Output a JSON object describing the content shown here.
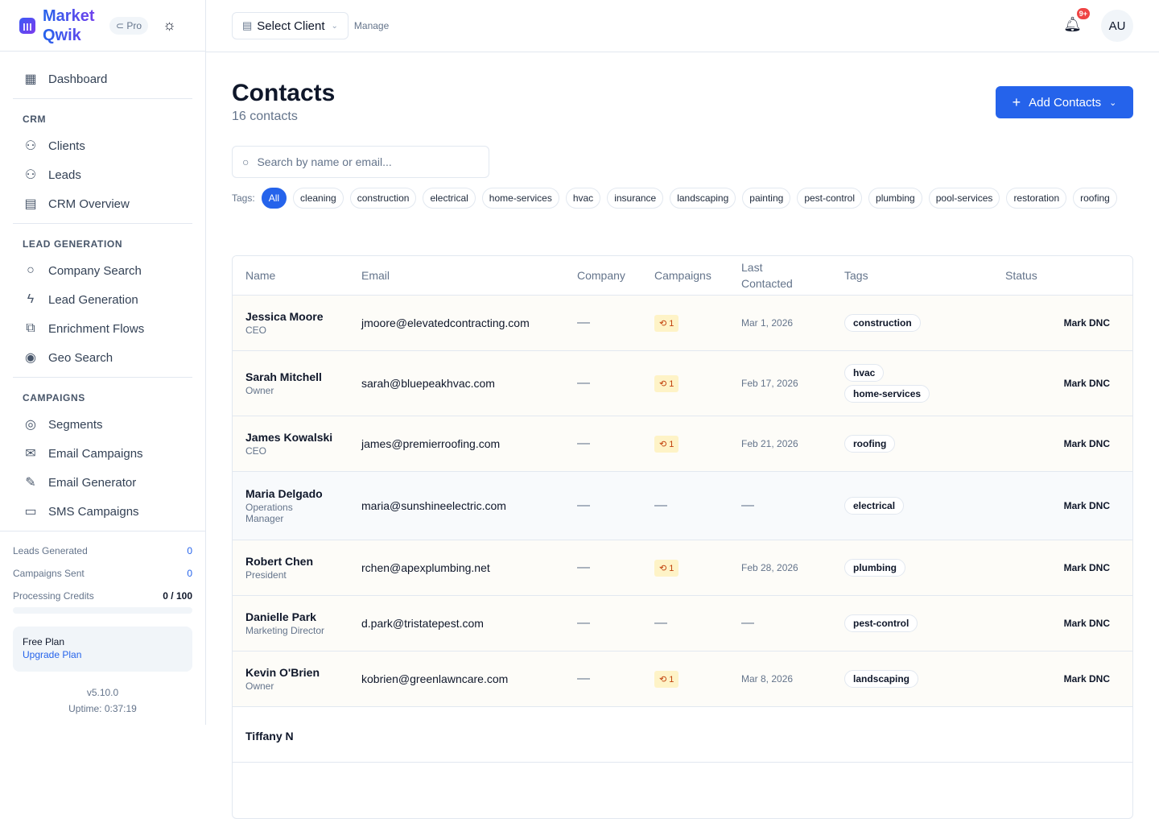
{
  "brand": {
    "name": "Market Qwik",
    "plan_badge": "Pro"
  },
  "sidebar": {
    "dashboard": "Dashboard",
    "sections": [
      {
        "title": "CRM",
        "items": [
          {
            "label": "Clients",
            "icon": "users-icon"
          },
          {
            "label": "Leads",
            "icon": "user-group-icon"
          },
          {
            "label": "CRM Overview",
            "icon": "building-icon"
          }
        ]
      },
      {
        "title": "LEAD GENERATION",
        "items": [
          {
            "label": "Company Search",
            "icon": "search-icon"
          },
          {
            "label": "Lead Generation",
            "icon": "bolt-icon"
          },
          {
            "label": "Enrichment Flows",
            "icon": "flow-icon"
          },
          {
            "label": "Geo Search",
            "icon": "map-pin-icon"
          }
        ]
      },
      {
        "title": "CAMPAIGNS",
        "items": [
          {
            "label": "Segments",
            "icon": "target-icon"
          },
          {
            "label": "Email Campaigns",
            "icon": "mail-icon"
          },
          {
            "label": "Email Generator",
            "icon": "pen-icon"
          },
          {
            "label": "SMS Campaigns",
            "icon": "message-icon"
          }
        ]
      }
    ],
    "stats": [
      {
        "label": "Leads Generated",
        "value": "0"
      },
      {
        "label": "Campaigns Sent",
        "value": "0"
      },
      {
        "label": "Processing Credits",
        "value": "0 / 100"
      }
    ],
    "credits_used_fraction": 0,
    "plan": {
      "name": "Free Plan",
      "upgrade": "Upgrade Plan"
    },
    "version": "v5.10.0",
    "uptime": "Uptime: 0:37:19"
  },
  "header": {
    "select_client": "Select Client",
    "manage": "Manage",
    "notif_badge": "9+",
    "avatar": "AU"
  },
  "page": {
    "title": "Contacts",
    "count": "16 contacts",
    "add_button": "Add Contacts",
    "search_placeholder": "Search by name or email...",
    "tags_label": "Tags:",
    "tags": [
      "All",
      "cleaning",
      "construction",
      "electrical",
      "home-services",
      "hvac",
      "insurance",
      "landscaping",
      "painting",
      "pest-control",
      "plumbing",
      "pool-services",
      "restoration",
      "roofing"
    ],
    "active_tag": "All"
  },
  "table": {
    "headers": [
      "Name",
      "Email",
      "Company",
      "Campaigns",
      "Last Contacted",
      "Tags",
      "Status"
    ],
    "rows": [
      {
        "name": "Jessica Moore",
        "role": "CEO",
        "email": "jmoore@elevatedcontracting.com",
        "company": "—",
        "campaigns": "1",
        "last": "Mar 1, 2026",
        "tags": [
          "construction"
        ],
        "action": "Mark DNC"
      },
      {
        "name": "Sarah Mitchell",
        "role": "Owner",
        "email": "sarah@bluepeakhvac.com",
        "company": "—",
        "campaigns": "1",
        "last": "Feb 17, 2026",
        "tags": [
          "hvac",
          "home-services"
        ],
        "action": "Mark DNC"
      },
      {
        "name": "James Kowalski",
        "role": "CEO",
        "email": "james@premierroofing.com",
        "company": "—",
        "campaigns": "1",
        "last": "Feb 21, 2026",
        "tags": [
          "roofing"
        ],
        "action": "Mark DNC"
      },
      {
        "name": "Maria Delgado",
        "role": "Operations Manager",
        "email": "maria@sunshineelectric.com",
        "company": "—",
        "campaigns": "—",
        "last": "—",
        "tags": [
          "electrical"
        ],
        "action": "Mark DNC"
      },
      {
        "name": "Robert Chen",
        "role": "President",
        "email": "rchen@apexplumbing.net",
        "company": "—",
        "campaigns": "1",
        "last": "Feb 28, 2026",
        "tags": [
          "plumbing"
        ],
        "action": "Mark DNC"
      },
      {
        "name": "Danielle Park",
        "role": "Marketing Director",
        "email": "d.park@tristatepest.com",
        "company": "—",
        "campaigns": "—",
        "last": "—",
        "tags": [
          "pest-control"
        ],
        "action": "Mark DNC"
      },
      {
        "name": "Kevin O'Brien",
        "role": "Owner",
        "email": "kobrien@greenlawncare.com",
        "company": "—",
        "campaigns": "1",
        "last": "Mar 8, 2026",
        "tags": [
          "landscaping"
        ],
        "action": "Mark DNC"
      },
      {
        "name": "Tiffany N",
        "role": "",
        "email": "",
        "company": "",
        "campaigns": "",
        "last": "",
        "tags": [],
        "action": ""
      }
    ]
  }
}
